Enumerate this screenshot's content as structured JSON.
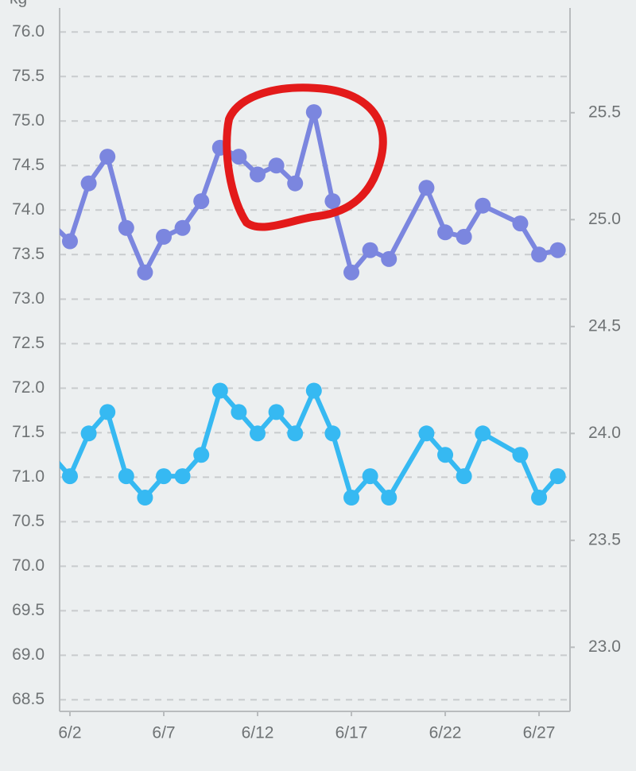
{
  "chart_data": {
    "type": "line",
    "ylabel": "kg",
    "x": [
      1,
      2,
      3,
      4,
      5,
      6,
      7,
      8,
      9,
      10,
      11,
      12,
      13,
      14,
      15,
      16,
      17,
      18,
      19,
      21,
      22,
      23,
      24,
      26,
      27,
      28
    ],
    "xlim": [
      1.45,
      28.65
    ],
    "xticks": [
      {
        "value": 2,
        "label": "6/2"
      },
      {
        "value": 7,
        "label": "6/7"
      },
      {
        "value": 12,
        "label": "6/12"
      },
      {
        "value": 17,
        "label": "6/17"
      },
      {
        "value": 22,
        "label": "6/22"
      },
      {
        "value": 27,
        "label": "6/27"
      }
    ],
    "ylim": [
      68.37,
      76.27
    ],
    "yticks": [
      68.5,
      {
        "value": 69,
        "label": "69.0"
      },
      69.5,
      {
        "value": 70,
        "label": "70.0"
      },
      70.5,
      {
        "value": 71,
        "label": "71.0"
      },
      71.5,
      {
        "value": 72,
        "label": "72.0"
      },
      72.5,
      {
        "value": 73,
        "label": "73.0"
      },
      73.5,
      {
        "value": 74,
        "label": "74.0"
      },
      74.5,
      {
        "value": 75,
        "label": "75.0"
      },
      75.5,
      {
        "value": 76,
        "label": "76.0"
      }
    ],
    "y2lim": [
      22.7,
      25.99
    ],
    "y2ticks": [
      {
        "value": 23,
        "label": "23.0"
      },
      23.5,
      {
        "value": 24,
        "label": "24.0"
      },
      24.5,
      {
        "value": 25,
        "label": "25.0"
      },
      25.5
    ],
    "grid": true,
    "series": [
      {
        "color": "#7b86df",
        "values": [
          73.85,
          73.65,
          74.3,
          74.6,
          73.8,
          73.3,
          73.7,
          73.8,
          74.1,
          74.7,
          74.6,
          74.4,
          74.5,
          74.3,
          75.1,
          74.1,
          73.3,
          73.55,
          73.45,
          74.25,
          73.75,
          73.7,
          74.05,
          73.85,
          73.5,
          73.55
        ]
      },
      {
        "color": "#36b9f2",
        "axis": "y2",
        "values": [
          23.9,
          23.8,
          24.0,
          24.1,
          23.8,
          23.7,
          23.8,
          23.8,
          23.9,
          24.2,
          24.1,
          24.0,
          24.1,
          24.0,
          24.2,
          24.0,
          23.7,
          23.8,
          23.7,
          24.0,
          23.9,
          23.8,
          24.0,
          23.9,
          23.7,
          23.8
        ]
      }
    ]
  }
}
